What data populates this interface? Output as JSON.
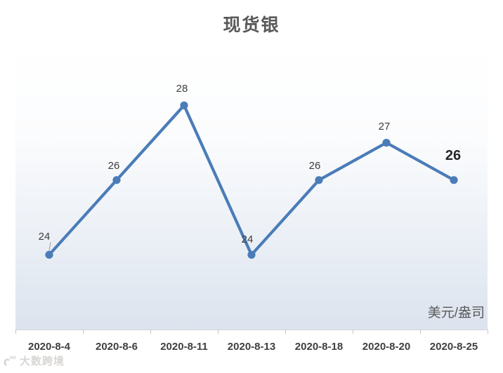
{
  "title": "现货银",
  "unit_label": "美元/盎司",
  "watermark": {
    "label": "大数跨境"
  },
  "colors": {
    "line": "#4a7cb8",
    "marker": "#4a7cb8",
    "title_text": "#595959",
    "axis_label_text": "#3f3f3f",
    "data_label_text": "#3d3d3d",
    "emphasized_label_text": "#262626",
    "axis_line": "#d6d6d6",
    "plot_gradient_top": "#ffffff",
    "plot_gradient_bottom": "#dce3ee",
    "leader_line": "#9b9b9b"
  },
  "chart_data": {
    "type": "line",
    "title": "现货银",
    "categories": [
      "2020-8-4",
      "2020-8-6",
      "2020-8-11",
      "2020-8-13",
      "2020-8-18",
      "2020-8-20",
      "2020-8-25"
    ],
    "series": [
      {
        "name": "现货银",
        "values": [
          24,
          26,
          28,
          24,
          26,
          27,
          26
        ]
      }
    ],
    "data_labels": [
      "24",
      "26",
      "28",
      "24",
      "26",
      "27",
      "26"
    ],
    "emphasized_point_index": 6,
    "leader_line_point_index": 0,
    "xlabel": "",
    "ylabel": "美元/盎司",
    "ylim": [
      22,
      29.6
    ],
    "grid": false,
    "legend": "none",
    "marker": "circle"
  }
}
